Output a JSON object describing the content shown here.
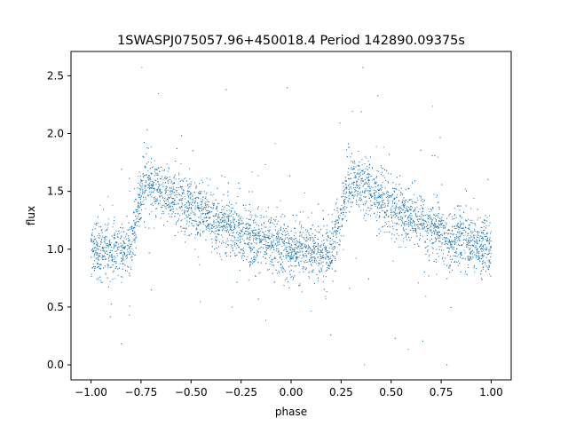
{
  "chart_data": {
    "type": "scatter",
    "title": "1SWASPJ075057.96+450018.4 Period 142890.09375s",
    "xlabel": "phase",
    "ylabel": "flux",
    "xlim": [
      -1.1,
      1.1
    ],
    "ylim": [
      -0.13,
      2.71
    ],
    "xticks": [
      -1.0,
      -0.75,
      -0.5,
      -0.25,
      0.0,
      0.25,
      0.5,
      0.75,
      1.0
    ],
    "xtick_labels": [
      "−1.00",
      "−0.75",
      "−0.50",
      "−0.25",
      "0.00",
      "0.25",
      "0.50",
      "0.75",
      "1.00"
    ],
    "yticks": [
      0.0,
      0.5,
      1.0,
      1.5,
      2.0,
      2.5
    ],
    "ytick_labels": [
      "0.0",
      "0.5",
      "1.0",
      "1.5",
      "2.0",
      "2.5"
    ],
    "grid": false,
    "marker_color": "#1f77b4",
    "series": [
      {
        "x": [
          -1.0,
          -0.95,
          -0.9,
          -0.85,
          -0.8,
          -0.78,
          -0.75,
          -0.72,
          -0.7,
          -0.65,
          -0.6,
          -0.55,
          -0.5,
          -0.45,
          -0.4,
          -0.35,
          -0.3,
          -0.25,
          -0.2,
          -0.15,
          -0.1,
          -0.05,
          0.0,
          0.05,
          0.1,
          0.15,
          0.2,
          0.22,
          0.25,
          0.28,
          0.3,
          0.35,
          0.4,
          0.45,
          0.5,
          0.55,
          0.6,
          0.65,
          0.7,
          0.75,
          0.8,
          0.85,
          0.9,
          0.95,
          1.0
        ],
        "y": [
          1.0,
          0.99,
          0.98,
          0.97,
          1.0,
          1.2,
          1.5,
          1.6,
          1.55,
          1.52,
          1.48,
          1.42,
          1.36,
          1.31,
          1.27,
          1.22,
          1.18,
          1.14,
          1.1,
          1.07,
          1.05,
          1.03,
          1.0,
          0.99,
          0.98,
          0.97,
          0.98,
          1.05,
          1.3,
          1.55,
          1.6,
          1.55,
          1.5,
          1.44,
          1.38,
          1.33,
          1.28,
          1.23,
          1.18,
          1.14,
          1.1,
          1.07,
          1.05,
          1.02,
          1.0
        ]
      }
    ]
  }
}
